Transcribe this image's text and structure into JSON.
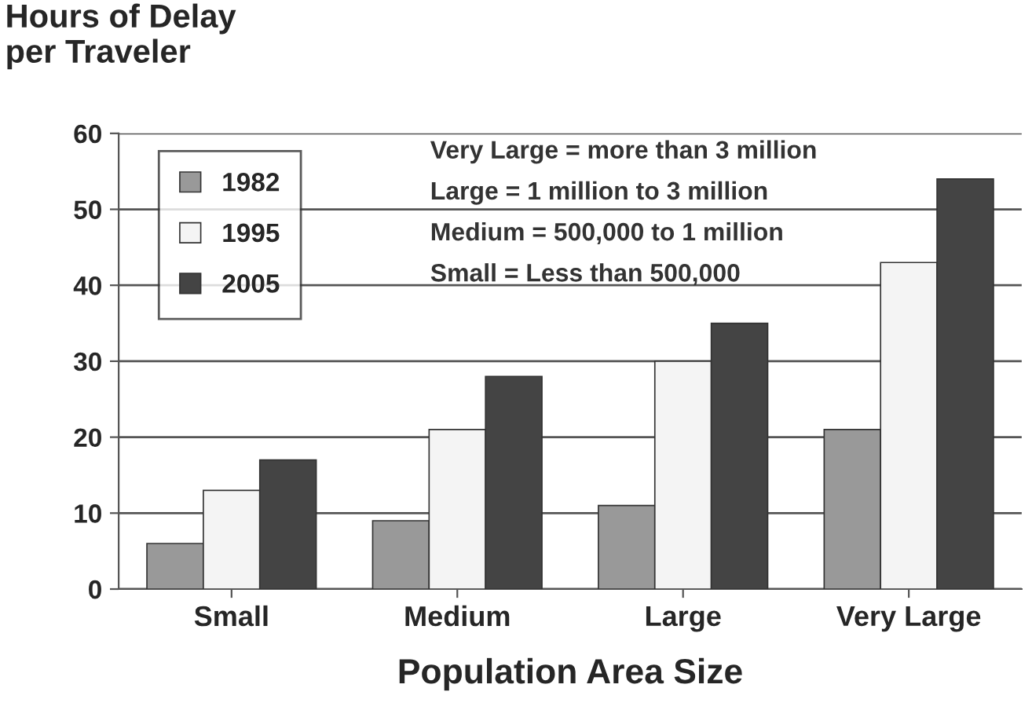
{
  "chart_data": {
    "type": "bar",
    "ylabel": "Hours of Delay\nper Traveler",
    "xlabel": "Population Area Size",
    "categories": [
      "Small",
      "Medium",
      "Large",
      "Very Large"
    ],
    "series": [
      {
        "name": "1982",
        "color": "#999999",
        "values": [
          6,
          9,
          11,
          21
        ]
      },
      {
        "name": "1995",
        "color": "#f4f4f4",
        "values": [
          13,
          21,
          30,
          43
        ]
      },
      {
        "name": "2005",
        "color": "#444444",
        "values": [
          17,
          28,
          35,
          54
        ]
      }
    ],
    "ylim": [
      0,
      60
    ],
    "yticks": [
      0,
      10,
      20,
      30,
      40,
      50,
      60
    ],
    "grid": "y",
    "legend": "top left",
    "annotations": [
      "Very Large = more than 3 million",
      "Large = 1 million to 3 million",
      "Medium = 500,000 to 1 million",
      "Small = Less than 500,000"
    ]
  }
}
